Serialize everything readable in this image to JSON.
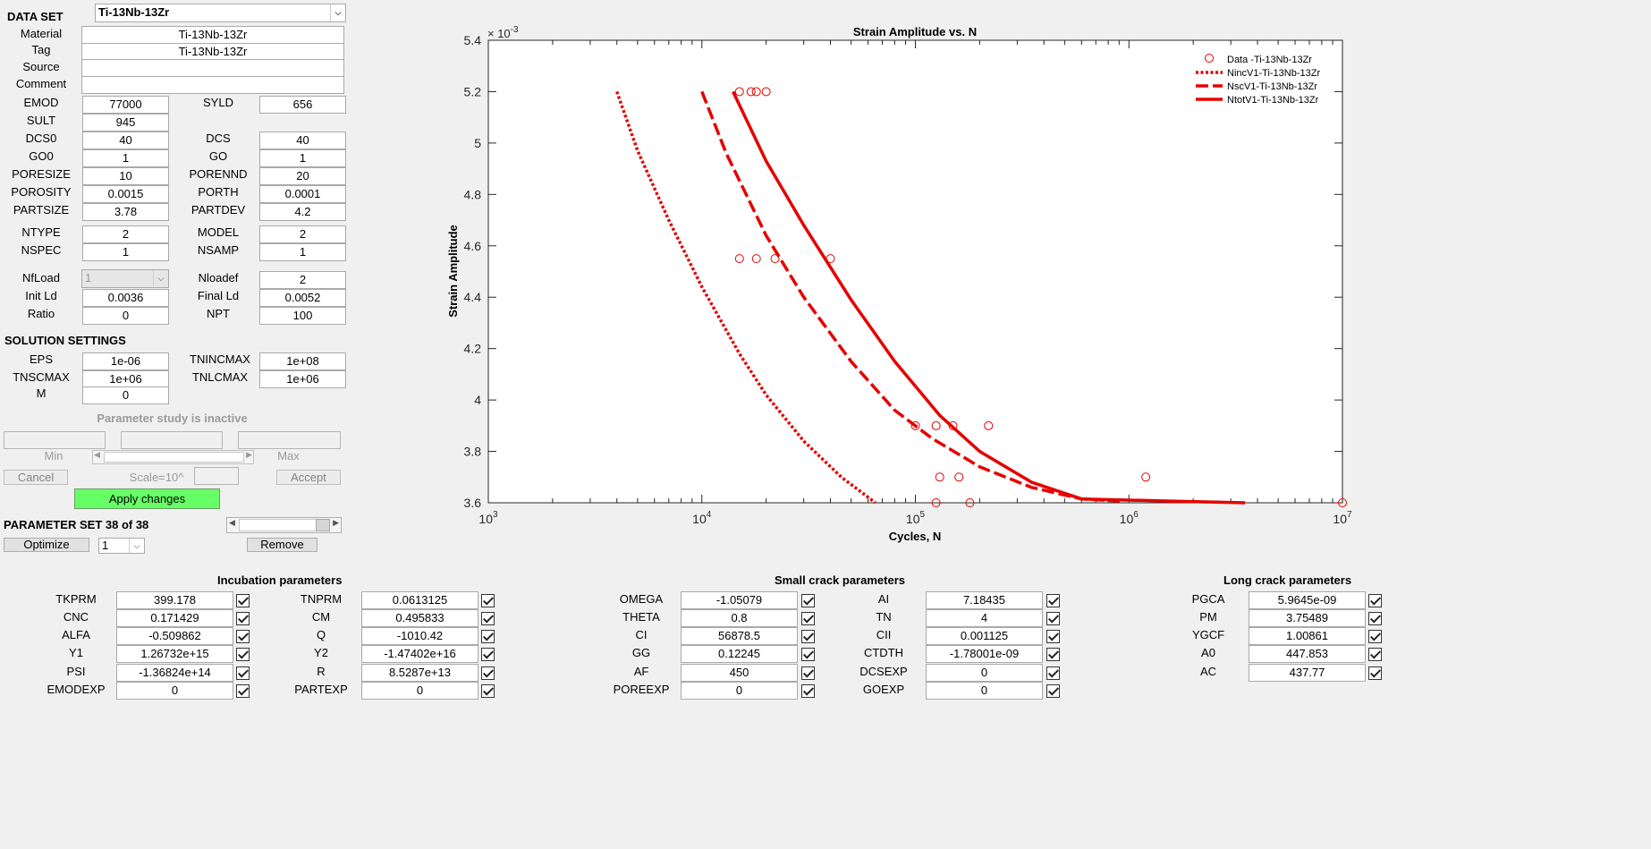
{
  "dataset": {
    "label": "DATA SET",
    "selected": "Ti-13Nb-13Zr",
    "material_label": "Material",
    "material": "Ti-13Nb-13Zr",
    "tag_label": "Tag",
    "tag": "Ti-13Nb-13Zr",
    "source_label": "Source",
    "source": "",
    "comment_label": "Comment",
    "comment": ""
  },
  "props": {
    "emod_label": "EMOD",
    "emod": "77000",
    "syld_label": "SYLD",
    "syld": "656",
    "sult_label": "SULT",
    "sult": "945",
    "dcs0_label": "DCS0",
    "dcs0": "40",
    "dcs_label": "DCS",
    "dcs": "40",
    "go0_label": "GO0",
    "go0": "1",
    "go_label": "GO",
    "go": "1",
    "poresize_label": "PORESIZE",
    "poresize": "10",
    "porennd_label": "PORENND",
    "porennd": "20",
    "porosity_label": "POROSITY",
    "porosity": "0.0015",
    "porth_label": "PORTH",
    "porth": "0.0001",
    "partsize_label": "PARTSIZE",
    "partsize": "3.78",
    "partdev_label": "PARTDEV",
    "partdev": "4.2",
    "ntype_label": "NTYPE",
    "ntype": "2",
    "model_label": "MODEL",
    "model": "2",
    "nspec_label": "NSPEC",
    "nspec": "1",
    "nsamp_label": "NSAMP",
    "nsamp": "1",
    "nfload_label": "NfLoad",
    "nfload": "1",
    "nloadef_label": "Nloadef",
    "nloadef": "2",
    "initld_label": "Init Ld",
    "initld": "0.0036",
    "finalld_label": "Final Ld",
    "finalld": "0.0052",
    "ratio_label": "Ratio",
    "ratio": "0",
    "npt_label": "NPT",
    "npt": "100"
  },
  "solution": {
    "title": "SOLUTION SETTINGS",
    "eps_label": "EPS",
    "eps": "1e-06",
    "tnincmax_label": "TNINCMAX",
    "tnincmax": "1e+08",
    "tnscmax_label": "TNSCMAX",
    "tnscmax": "1e+06",
    "tnlcmax_label": "TNLCMAX",
    "tnlcmax": "1e+06",
    "m_label": "M",
    "m": "0"
  },
  "study": {
    "status": "Parameter study is inactive",
    "min_label": "Min",
    "max_label": "Max",
    "scale_label": "Scale=10^",
    "cancel": "Cancel",
    "accept": "Accept",
    "apply": "Apply changes"
  },
  "paramset": {
    "label": "PARAMETER SET 38 of 38",
    "optimize": "Optimize",
    "opt_value": "1",
    "remove": "Remove"
  },
  "incubation": {
    "title": "Incubation parameters",
    "left": [
      {
        "label": "TKPRM",
        "value": "399.178"
      },
      {
        "label": "CNC",
        "value": "0.171429"
      },
      {
        "label": "ALFA",
        "value": "-0.509862"
      },
      {
        "label": "Y1",
        "value": "1.26732e+15"
      },
      {
        "label": "PSI",
        "value": "-1.36824e+14"
      },
      {
        "label": "EMODEXP",
        "value": "0"
      }
    ],
    "right": [
      {
        "label": "TNPRM",
        "value": "0.0613125"
      },
      {
        "label": "CM",
        "value": "0.495833"
      },
      {
        "label": "Q",
        "value": "-1010.42"
      },
      {
        "label": "Y2",
        "value": "-1.47402e+16"
      },
      {
        "label": "R",
        "value": "8.5287e+13"
      },
      {
        "label": "PARTEXP",
        "value": "0"
      }
    ]
  },
  "smallcrack": {
    "title": "Small crack parameters",
    "left": [
      {
        "label": "OMEGA",
        "value": "-1.05079"
      },
      {
        "label": "THETA",
        "value": "0.8"
      },
      {
        "label": "CI",
        "value": "56878.5"
      },
      {
        "label": "GG",
        "value": "0.12245"
      },
      {
        "label": "AF",
        "value": "450"
      },
      {
        "label": "POREEXP",
        "value": "0"
      }
    ],
    "right": [
      {
        "label": "AI",
        "value": "7.18435"
      },
      {
        "label": "TN",
        "value": "4"
      },
      {
        "label": "CII",
        "value": "0.001125"
      },
      {
        "label": "CTDTH",
        "value": "-1.78001e-09"
      },
      {
        "label": "DCSEXP",
        "value": "0"
      },
      {
        "label": "GOEXP",
        "value": "0"
      }
    ]
  },
  "longcrack": {
    "title": "Long crack parameters",
    "items": [
      {
        "label": "PGCA",
        "value": "5.9645e-09"
      },
      {
        "label": "PM",
        "value": "3.75489"
      },
      {
        "label": "YGCF",
        "value": "1.00861"
      },
      {
        "label": "A0",
        "value": "447.853"
      },
      {
        "label": "AC",
        "value": "437.77"
      }
    ]
  },
  "chart_data": {
    "type": "scatter",
    "title": "Strain Amplitude vs. N",
    "xlabel": "Cycles, N",
    "ylabel": "Strain Amplitude",
    "y_multiplier": "× 10",
    "y_multiplier_exp": "-3",
    "xscale": "log",
    "xlim": [
      1000,
      10000000
    ],
    "ylim": [
      3.6,
      5.4
    ],
    "yticks": [
      "3.6",
      "3.8",
      "4",
      "4.2",
      "4.4",
      "4.6",
      "4.8",
      "5",
      "5.2",
      "5.4"
    ],
    "xticks": [
      {
        "base": "10",
        "exp": "3"
      },
      {
        "base": "10",
        "exp": "4"
      },
      {
        "base": "10",
        "exp": "5"
      },
      {
        "base": "10",
        "exp": "6"
      },
      {
        "base": "10",
        "exp": "7"
      }
    ],
    "legend_position": "top-right",
    "color": "#e60000",
    "series": [
      {
        "name": "Data -Ti-13Nb-13Zr",
        "style": "markers",
        "points": [
          [
            15000,
            5.2
          ],
          [
            17000,
            5.2
          ],
          [
            18000,
            5.2
          ],
          [
            20000,
            5.2
          ],
          [
            15000,
            4.55
          ],
          [
            18000,
            4.55
          ],
          [
            22000,
            4.55
          ],
          [
            40000,
            4.55
          ],
          [
            100000,
            3.9
          ],
          [
            125000,
            3.9
          ],
          [
            150000,
            3.9
          ],
          [
            220000,
            3.9
          ],
          [
            130000,
            3.7
          ],
          [
            160000,
            3.7
          ],
          [
            1200000,
            3.7
          ],
          [
            125000,
            3.6
          ],
          [
            180000,
            3.6
          ],
          [
            10000000,
            3.6
          ]
        ]
      },
      {
        "name": "NincV1-Ti-13Nb-13Zr",
        "style": "dotted",
        "points": [
          [
            4000,
            5.2
          ],
          [
            5000,
            4.97
          ],
          [
            7000,
            4.7
          ],
          [
            10000,
            4.44
          ],
          [
            15000,
            4.18
          ],
          [
            20000,
            4.02
          ],
          [
            30000,
            3.84
          ],
          [
            45000,
            3.7
          ],
          [
            65000,
            3.6
          ]
        ]
      },
      {
        "name": "NscV1-Ti-13Nb-13Zr",
        "style": "dashed",
        "points": [
          [
            10000,
            5.2
          ],
          [
            13000,
            4.96
          ],
          [
            20000,
            4.64
          ],
          [
            30000,
            4.4
          ],
          [
            50000,
            4.15
          ],
          [
            80000,
            3.96
          ],
          [
            120000,
            3.85
          ],
          [
            200000,
            3.74
          ],
          [
            350000,
            3.66
          ],
          [
            600000,
            3.615
          ],
          [
            900000,
            3.607
          ]
        ]
      },
      {
        "name": "NtotV1-Ti-13Nb-13Zr",
        "style": "solid",
        "points": [
          [
            14000,
            5.2
          ],
          [
            20000,
            4.93
          ],
          [
            30000,
            4.68
          ],
          [
            50000,
            4.39
          ],
          [
            80000,
            4.15
          ],
          [
            130000,
            3.94
          ],
          [
            200000,
            3.8
          ],
          [
            350000,
            3.68
          ],
          [
            600000,
            3.615
          ],
          [
            1500000,
            3.607
          ],
          [
            3500000,
            3.6
          ]
        ]
      }
    ]
  }
}
